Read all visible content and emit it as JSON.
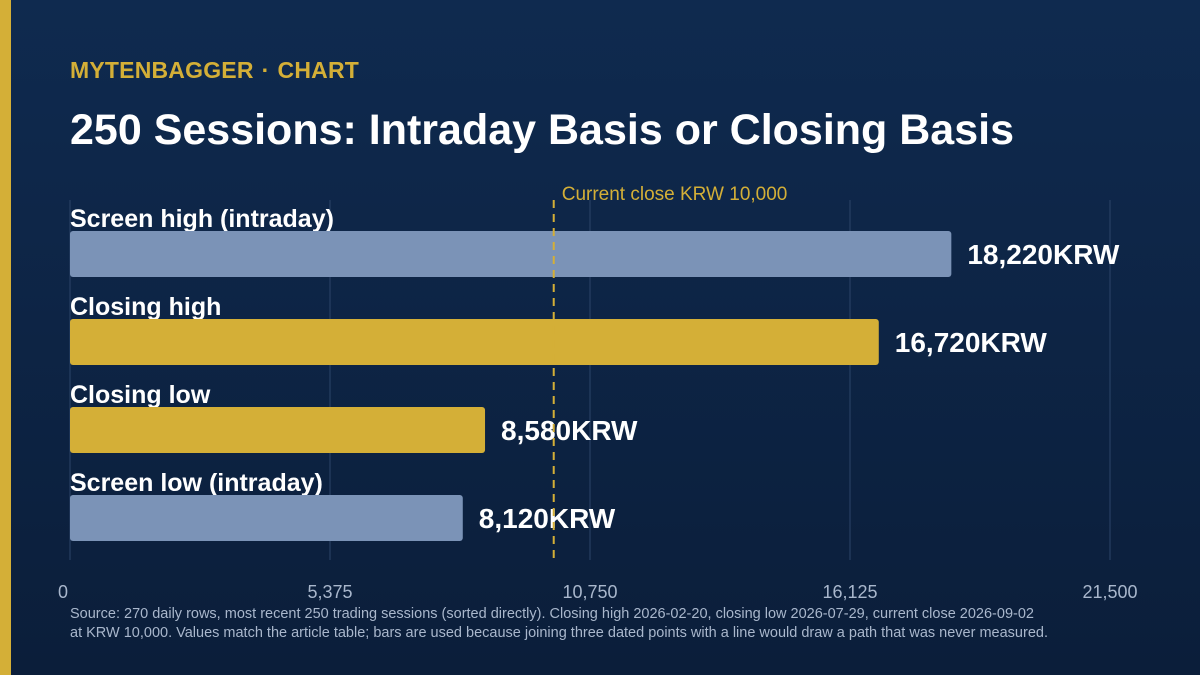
{
  "header": {
    "brand": "MYTENBAGGER",
    "brand_separator": "·",
    "section": "CHART",
    "title": "250 Sessions: Intraday Basis or Closing Basis"
  },
  "chart_data": {
    "type": "bar",
    "orientation": "horizontal",
    "categories": [
      "Screen high (intraday)",
      "Closing high",
      "Closing low",
      "Screen low (intraday)"
    ],
    "values": [
      18220,
      16720,
      8580,
      8120
    ],
    "value_labels": [
      "18,220KRW",
      "16,720KRW",
      "8,580KRW",
      "8,120KRW"
    ],
    "bar_colors": [
      "#7b93b7",
      "#d4af37",
      "#d4af37",
      "#7b93b7"
    ],
    "xlim": [
      0,
      21500
    ],
    "xticks": [
      0,
      5375,
      10750,
      16125,
      21500
    ],
    "xtick_labels": [
      "0",
      "5,375",
      "10,750",
      "16,125",
      "21,500"
    ],
    "grid": true,
    "reference_line": {
      "value": 10000,
      "label": "Current close KRW 10,000",
      "color": "#d4af37"
    }
  },
  "footer": {
    "source_line1": "Source: 270 daily rows, most recent 250 trading sessions (sorted directly). Closing high 2026-02-20, closing low 2026-07-29, current close 2026-09-02",
    "source_line2": "at KRW 10,000. Values match the article table; bars are used because joining three dated points with a line would draw a path that was never measured."
  },
  "colors": {
    "background": "#0f2a4f",
    "accent": "#d4af37",
    "intraday_bar": "#7b93b7",
    "closing_bar": "#d4af37"
  }
}
